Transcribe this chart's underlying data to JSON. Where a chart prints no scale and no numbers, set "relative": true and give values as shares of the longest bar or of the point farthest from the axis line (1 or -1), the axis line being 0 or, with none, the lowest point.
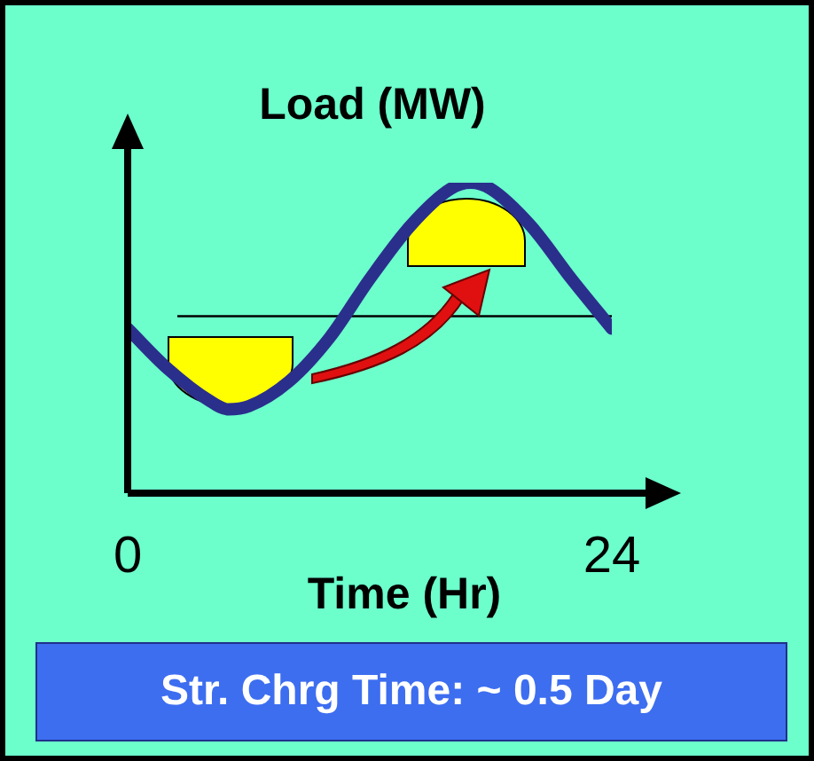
{
  "chart_data": {
    "type": "line",
    "relative": true,
    "xlabel": "Time (Hr)",
    "ylabel": "Load (MW)",
    "x": [
      0,
      2,
      4,
      5,
      6,
      8,
      10,
      12,
      14,
      16,
      17,
      18,
      20,
      22,
      24
    ],
    "xlim": [
      0,
      24
    ],
    "xticks": [
      0,
      24
    ],
    "tick_labels": "x",
    "series": [
      {
        "color": "#2a2f8c",
        "values": [
          0.53,
          0.4,
          0.3,
          0.27,
          0.28,
          0.36,
          0.5,
          0.69,
          0.86,
          0.98,
          1.0,
          0.98,
          0.86,
          0.69,
          0.53
        ]
      }
    ],
    "ref_lines": [
      {
        "axis": "y",
        "value": 0.57,
        "color": "#000000"
      }
    ],
    "annotations": [
      "Str. Chrg Time: ~ 0.5 Day"
    ],
    "legend": false,
    "grid": false
  }
}
